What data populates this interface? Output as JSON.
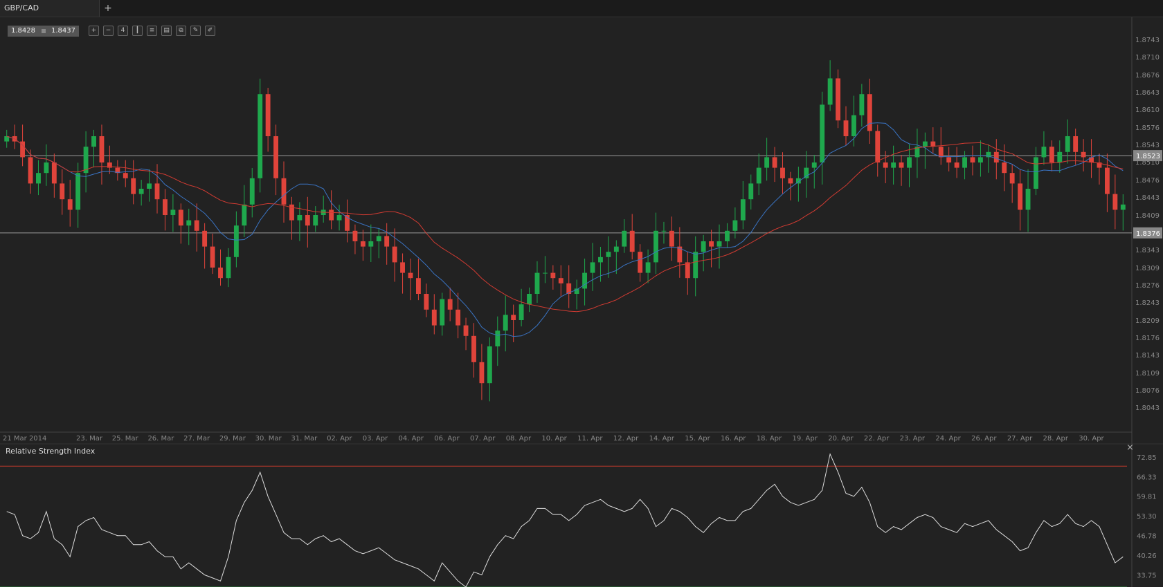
{
  "tab": {
    "title": "GBP/CAD",
    "add_label": "+"
  },
  "quote": {
    "bid": "1.8428",
    "ask": "1.8437"
  },
  "toolbar": {
    "icons": [
      "zoom-in-icon",
      "zoom-out-icon",
      "timeframe-icon",
      "candles-icon",
      "indicators-icon",
      "chart-type-icon",
      "template-icon",
      "edit-icon",
      "draw-icon"
    ],
    "timeframe_label": "4"
  },
  "colors": {
    "up": "#1fa84d",
    "down": "#e0443b",
    "ma_fast": "#3a74c4",
    "ma_slow": "#d23b32",
    "rsi": "#dddddd",
    "overbought": "#c0392b",
    "oversold": "#2e8b3e"
  },
  "price_axis": {
    "ticks": [
      "1.8743",
      "1.8710",
      "1.8676",
      "1.8643",
      "1.8610",
      "1.8576",
      "1.8543",
      "1.8510",
      "1.8476",
      "1.8443",
      "1.8409",
      "1.8343",
      "1.8309",
      "1.8276",
      "1.8243",
      "1.8209",
      "1.8176",
      "1.8143",
      "1.8109",
      "1.8076",
      "1.8043"
    ],
    "levels": [
      {
        "value": "1.8523"
      },
      {
        "value": "1.8376"
      }
    ]
  },
  "time_axis": {
    "labels": [
      "21 Mar 2014",
      "23. Mar",
      "25. Mar",
      "26. Mar",
      "27. Mar",
      "29. Mar",
      "30. Mar",
      "31. Mar",
      "02. Apr",
      "03. Apr",
      "04. Apr",
      "06. Apr",
      "07. Apr",
      "08. Apr",
      "10. Apr",
      "11. Apr",
      "12. Apr",
      "14. Apr",
      "15. Apr",
      "16. Apr",
      "18. Apr",
      "19. Apr",
      "20. Apr",
      "22. Apr",
      "23. Apr",
      "24. Apr",
      "26. Apr",
      "27. Apr",
      "28. Apr",
      "30. Apr"
    ]
  },
  "rsi_panel": {
    "title": "Relative Strength Index",
    "ticks": [
      "72.85",
      "66.33",
      "59.81",
      "53.30",
      "46.78",
      "40.26",
      "33.75"
    ],
    "close_label": "×"
  },
  "chart_data": {
    "type": "candlestick",
    "symbol": "GBP/CAD",
    "ylim": [
      1.801,
      1.876
    ],
    "close": [
      1.856,
      1.855,
      1.852,
      1.847,
      1.849,
      1.851,
      1.847,
      1.844,
      1.842,
      1.849,
      1.854,
      1.856,
      1.851,
      1.85,
      1.849,
      1.848,
      1.845,
      1.846,
      1.847,
      1.844,
      1.841,
      1.842,
      1.839,
      1.84,
      1.838,
      1.835,
      1.831,
      1.829,
      1.833,
      1.839,
      1.843,
      1.848,
      1.864,
      1.856,
      1.848,
      1.843,
      1.84,
      1.841,
      1.839,
      1.841,
      1.842,
      1.84,
      1.841,
      1.838,
      1.836,
      1.835,
      1.836,
      1.837,
      1.835,
      1.832,
      1.83,
      1.829,
      1.826,
      1.823,
      1.82,
      1.825,
      1.823,
      1.82,
      1.818,
      1.813,
      1.809,
      1.816,
      1.819,
      1.822,
      1.821,
      1.824,
      1.826,
      1.83,
      1.83,
      1.829,
      1.828,
      1.826,
      1.827,
      1.83,
      1.832,
      1.833,
      1.834,
      1.835,
      1.838,
      1.834,
      1.83,
      1.832,
      1.838,
      1.838,
      1.835,
      1.832,
      1.829,
      1.834,
      1.836,
      1.835,
      1.836,
      1.838,
      1.84,
      1.844,
      1.847,
      1.85,
      1.852,
      1.85,
      1.848,
      1.847,
      1.848,
      1.85,
      1.851,
      1.862,
      1.867,
      1.859,
      1.856,
      1.86,
      1.864,
      1.857,
      1.851,
      1.85,
      1.851,
      1.85,
      1.852,
      1.854,
      1.855,
      1.854,
      1.852,
      1.851,
      1.85,
      1.852,
      1.851,
      1.852,
      1.853,
      1.851,
      1.849,
      1.847,
      1.842,
      1.846,
      1.852,
      1.854,
      1.851,
      1.853,
      1.856,
      1.853,
      1.852,
      1.851,
      1.85,
      1.845,
      1.842,
      1.843
    ],
    "ma_fast_period": 9,
    "ma_slow_period": 21,
    "rsi": {
      "ylim": [
        30,
        76
      ],
      "overbought": 70,
      "oversold": 30,
      "values": [
        55,
        54,
        47,
        46,
        48,
        55,
        46,
        44,
        40,
        50,
        52,
        53,
        49,
        48,
        47,
        47,
        44,
        44,
        45,
        42,
        40,
        40,
        36,
        38,
        36,
        34,
        33,
        32,
        40,
        52,
        58,
        62,
        68,
        60,
        54,
        48,
        46,
        46,
        44,
        46,
        47,
        45,
        46,
        44,
        42,
        41,
        42,
        43,
        41,
        39,
        38,
        37,
        36,
        34,
        32,
        38,
        35,
        32,
        30,
        35,
        34,
        40,
        44,
        47,
        46,
        50,
        52,
        56,
        56,
        54,
        54,
        52,
        54,
        57,
        58,
        59,
        57,
        56,
        55,
        56,
        59,
        56,
        50,
        52,
        56,
        55,
        53,
        50,
        48,
        51,
        53,
        52,
        52,
        55,
        56,
        59,
        62,
        64,
        60,
        58,
        57,
        58,
        59,
        62,
        74,
        68,
        61,
        60,
        63,
        58,
        50,
        48,
        50,
        49,
        51,
        53,
        54,
        53,
        50,
        49,
        48,
        51,
        50,
        51,
        52,
        49,
        47,
        45,
        42,
        43,
        48,
        52,
        50,
        51,
        54,
        51,
        50,
        52,
        50,
        44,
        38,
        40
      ]
    }
  }
}
